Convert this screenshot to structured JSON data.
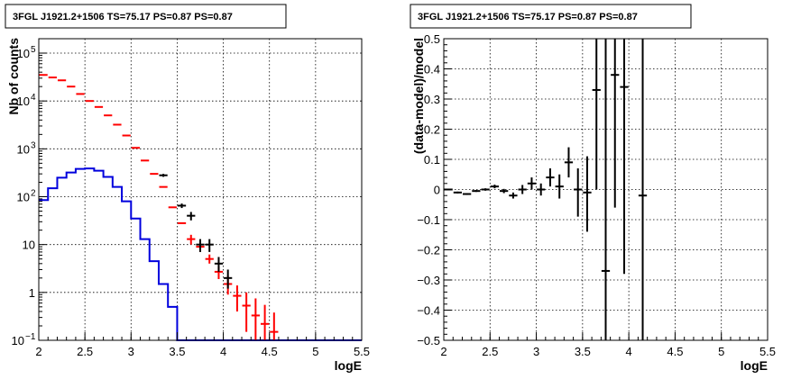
{
  "chart_data": [
    {
      "type": "line",
      "title": "3FGL J1921.2+1506 TS=75.17 PS=0.87 PS=0.87",
      "xlabel": "logE",
      "ylabel": "Nb of counts",
      "xlim": [
        2,
        5.5
      ],
      "ylim": [
        0.1,
        200000
      ],
      "yscale": "log",
      "grid": true,
      "xticks": [
        "2",
        "2.5",
        "3",
        "3.5",
        "4",
        "4.5",
        "5",
        "5.5"
      ],
      "yticks": [
        {
          "v": 0.1,
          "b": "10",
          "e": "−1"
        },
        {
          "v": 1,
          "b": "1",
          "e": ""
        },
        {
          "v": 10,
          "b": "10",
          "e": ""
        },
        {
          "v": 100,
          "b": "10",
          "e": "2"
        },
        {
          "v": 1000,
          "b": "10",
          "e": "3"
        },
        {
          "v": 10000,
          "b": "10",
          "e": "4"
        },
        {
          "v": 100000,
          "b": "10",
          "e": "5"
        }
      ],
      "colors": {
        "model": "#ff0000",
        "data": "#000000",
        "source": "#0000dd"
      },
      "series": [
        {
          "kind": "step",
          "color": "#0000dd",
          "edges": [
            2.0,
            2.1,
            2.2,
            2.3,
            2.4,
            2.5,
            2.6,
            2.7,
            2.8,
            2.9,
            3.0,
            3.1,
            3.2,
            3.3,
            3.4,
            3.5,
            3.6,
            3.7,
            3.8,
            3.9,
            4.0,
            4.1,
            4.2,
            4.3,
            4.4,
            4.5,
            4.6,
            4.7,
            4.8,
            4.9,
            5.0,
            5.1,
            5.2,
            5.3,
            5.4,
            5.5
          ],
          "values": [
            85,
            150,
            250,
            320,
            380,
            390,
            350,
            260,
            160,
            80,
            35,
            13,
            4.5,
            1.5,
            0.5,
            0.1,
            0.1,
            0.1,
            0.1,
            0.1,
            0.1,
            0.1,
            0.1,
            0.1,
            0.1,
            0.1,
            0.1,
            0.1,
            0.1,
            0.1,
            0.1,
            0.1,
            0.1,
            0.1,
            0.1
          ]
        },
        {
          "kind": "points",
          "color": "#ff0000",
          "x": [
            2.05,
            2.15,
            2.25,
            2.35,
            2.45,
            2.55,
            2.65,
            2.75,
            2.85,
            2.95,
            3.05,
            3.15,
            3.25,
            3.35,
            3.45,
            3.55,
            3.65,
            3.75,
            3.85,
            3.95,
            4.05,
            4.15,
            4.25,
            4.35,
            4.45,
            4.55
          ],
          "y": [
            35000,
            31000,
            27000,
            20000,
            14000,
            10000,
            7500,
            5000,
            3200,
            1900,
            1050,
            570,
            300,
            160,
            60,
            28,
            13,
            9,
            5,
            2.7,
            1.5,
            0.85,
            0.53,
            0.33,
            0.22,
            0.15
          ],
          "ylo": [
            35000,
            31000,
            27000,
            20000,
            14000,
            10000,
            7500,
            5000,
            3200,
            1900,
            1050,
            570,
            300,
            160,
            60,
            28,
            10,
            7,
            4,
            1.9,
            0.9,
            0.4,
            0.15,
            0.1,
            0.1,
            0.1
          ],
          "yhi": [
            35000,
            31000,
            27000,
            20000,
            14000,
            10000,
            7500,
            5000,
            3200,
            1900,
            1050,
            570,
            300,
            160,
            60,
            28,
            16,
            11,
            6.2,
            3.5,
            2.2,
            1.4,
            1.0,
            0.75,
            0.55,
            0.38
          ]
        },
        {
          "kind": "points",
          "color": "#000000",
          "x": [
            3.35,
            3.55,
            3.65,
            3.75,
            3.85,
            3.95,
            4.05
          ],
          "y": [
            280,
            65,
            40,
            10,
            10,
            4,
            2
          ],
          "ylo": [
            260,
            58,
            32,
            7,
            7,
            2.7,
            1.2
          ],
          "yhi": [
            300,
            72,
            48,
            13,
            13,
            5.5,
            3
          ]
        }
      ]
    },
    {
      "type": "scatter",
      "title": "3FGL J1921.2+1506 TS=75.17 PS=0.87 PS=0.87",
      "xlabel": "logE",
      "ylabel": "(data-model)/model",
      "xlim": [
        2,
        5.5
      ],
      "ylim": [
        -0.5,
        0.5
      ],
      "grid": true,
      "xticks": [
        "2",
        "2.5",
        "3",
        "3.5",
        "4",
        "4.5",
        "5",
        "5.5"
      ],
      "yticks": [
        {
          "v": -0.5,
          "t": "−0.5"
        },
        {
          "v": -0.4,
          "t": "−0.4"
        },
        {
          "v": -0.3,
          "t": "−0.3"
        },
        {
          "v": -0.2,
          "t": "−0.2"
        },
        {
          "v": -0.1,
          "t": "−0.1"
        },
        {
          "v": 0,
          "t": "0"
        },
        {
          "v": 0.1,
          "t": "0.1"
        },
        {
          "v": 0.2,
          "t": "0.2"
        },
        {
          "v": 0.3,
          "t": "0.3"
        },
        {
          "v": 0.4,
          "t": "0.4"
        },
        {
          "v": 0.5,
          "t": "0.5"
        }
      ],
      "series": [
        {
          "kind": "points",
          "color": "#000000",
          "x": [
            2.05,
            2.15,
            2.25,
            2.35,
            2.45,
            2.55,
            2.65,
            2.75,
            2.85,
            2.95,
            3.05,
            3.15,
            3.25,
            3.35,
            3.45,
            3.55,
            3.65,
            3.75,
            3.85,
            3.95,
            4.15
          ],
          "y": [
            0.0,
            -0.01,
            -0.015,
            -0.005,
            0.0,
            0.01,
            -0.005,
            -0.02,
            0.0,
            0.02,
            0.0,
            0.04,
            0.01,
            0.09,
            0.0,
            -0.01,
            0.33,
            -0.27,
            0.38,
            0.34,
            -0.02
          ],
          "ylo": [
            -0.003,
            -0.013,
            -0.018,
            -0.008,
            -0.004,
            0.004,
            -0.012,
            -0.03,
            -0.015,
            0.0,
            -0.02,
            0.01,
            -0.03,
            0.04,
            -0.09,
            -0.14,
            0.0,
            -0.5,
            -0.06,
            -0.28,
            -0.5
          ],
          "yhi": [
            0.003,
            -0.007,
            -0.012,
            -0.002,
            0.004,
            0.016,
            0.002,
            -0.01,
            0.015,
            0.04,
            0.02,
            0.07,
            0.05,
            0.14,
            0.07,
            0.11,
            0.5,
            0.5,
            0.5,
            0.5,
            0.5
          ]
        }
      ]
    }
  ]
}
